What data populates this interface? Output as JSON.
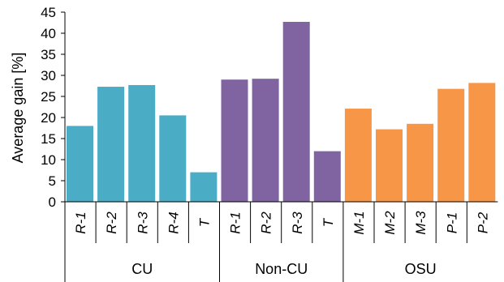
{
  "chart_data": {
    "type": "bar",
    "title": "",
    "xlabel": "",
    "ylabel": "Average gain [%]",
    "ylim": [
      0,
      45
    ],
    "yticks": [
      0,
      5,
      10,
      15,
      20,
      25,
      30,
      35,
      40,
      45
    ],
    "grid": false,
    "legend": "none",
    "categories": [
      "R-1",
      "R-2",
      "R-3",
      "R-4",
      "T",
      "R-1",
      "R-2",
      "R-3",
      "T",
      "M-1",
      "M-2",
      "M-3",
      "P-1",
      "P-2"
    ],
    "groups": [
      {
        "name": "CU",
        "count": 5,
        "color": "#4bacc6"
      },
      {
        "name": "Non-CU",
        "count": 4,
        "color": "#8064a2"
      },
      {
        "name": "OSU",
        "count": 5,
        "color": "#f79646"
      }
    ],
    "values": [
      18.0,
      27.3,
      27.7,
      20.5,
      7.0,
      29.0,
      29.2,
      42.7,
      12.0,
      22.1,
      17.2,
      18.5,
      26.8,
      28.2
    ]
  }
}
